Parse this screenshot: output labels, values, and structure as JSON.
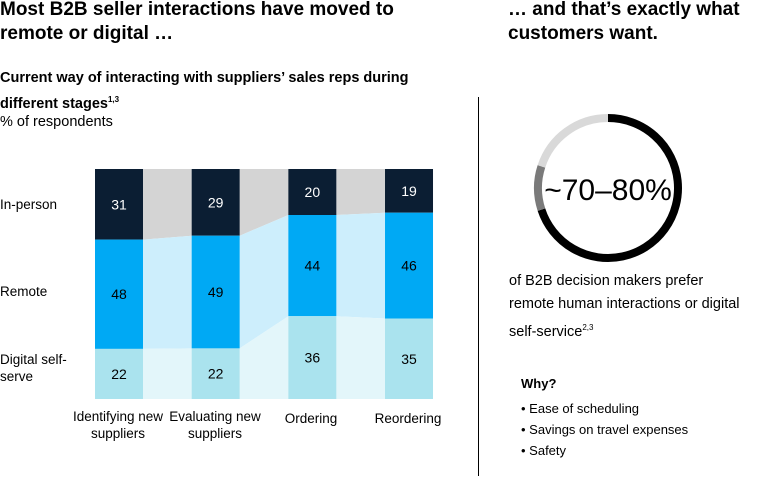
{
  "header": {
    "left_title": "Most B2B seller interactions have moved to remote or digital …",
    "right_title": "… and that’s exactly what customers want."
  },
  "chart_data": {
    "type": "bar",
    "stacked": true,
    "title": "Current way of interacting with suppliers’ sales reps during different stages",
    "title_footnote": "1,3",
    "unit": "% of respondents",
    "categories": [
      "Identifying new suppliers",
      "Evaluating new suppliers",
      "Ordering",
      "Reordering"
    ],
    "series": [
      {
        "name": "In-person",
        "values": [
          31,
          29,
          20,
          19
        ],
        "color": "#0b1e33",
        "band_color": "#d4d4d4",
        "text_color": "#ffffff"
      },
      {
        "name": "Remote",
        "values": [
          48,
          49,
          44,
          46
        ],
        "color": "#00a9f4",
        "band_color": "#cdeefc",
        "text_color": "#000000"
      },
      {
        "name": "Digital self-serve",
        "values": [
          22,
          22,
          36,
          35
        ],
        "color": "#aae3ee",
        "band_color": "#e3f6fa",
        "text_color": "#000000"
      }
    ]
  },
  "donut": {
    "label": "~70–80%",
    "share_low": 0.7,
    "share_high": 0.8,
    "colors": {
      "main": "#000000",
      "range": "#7a7a7a",
      "rest": "#d9d9d9"
    },
    "description": "of B2B decision makers prefer remote human interactions or digital self-service",
    "footnote": "2,3"
  },
  "why": {
    "heading": "Why?",
    "items": [
      "Ease of scheduling",
      "Savings on travel expenses",
      "Safety"
    ]
  }
}
